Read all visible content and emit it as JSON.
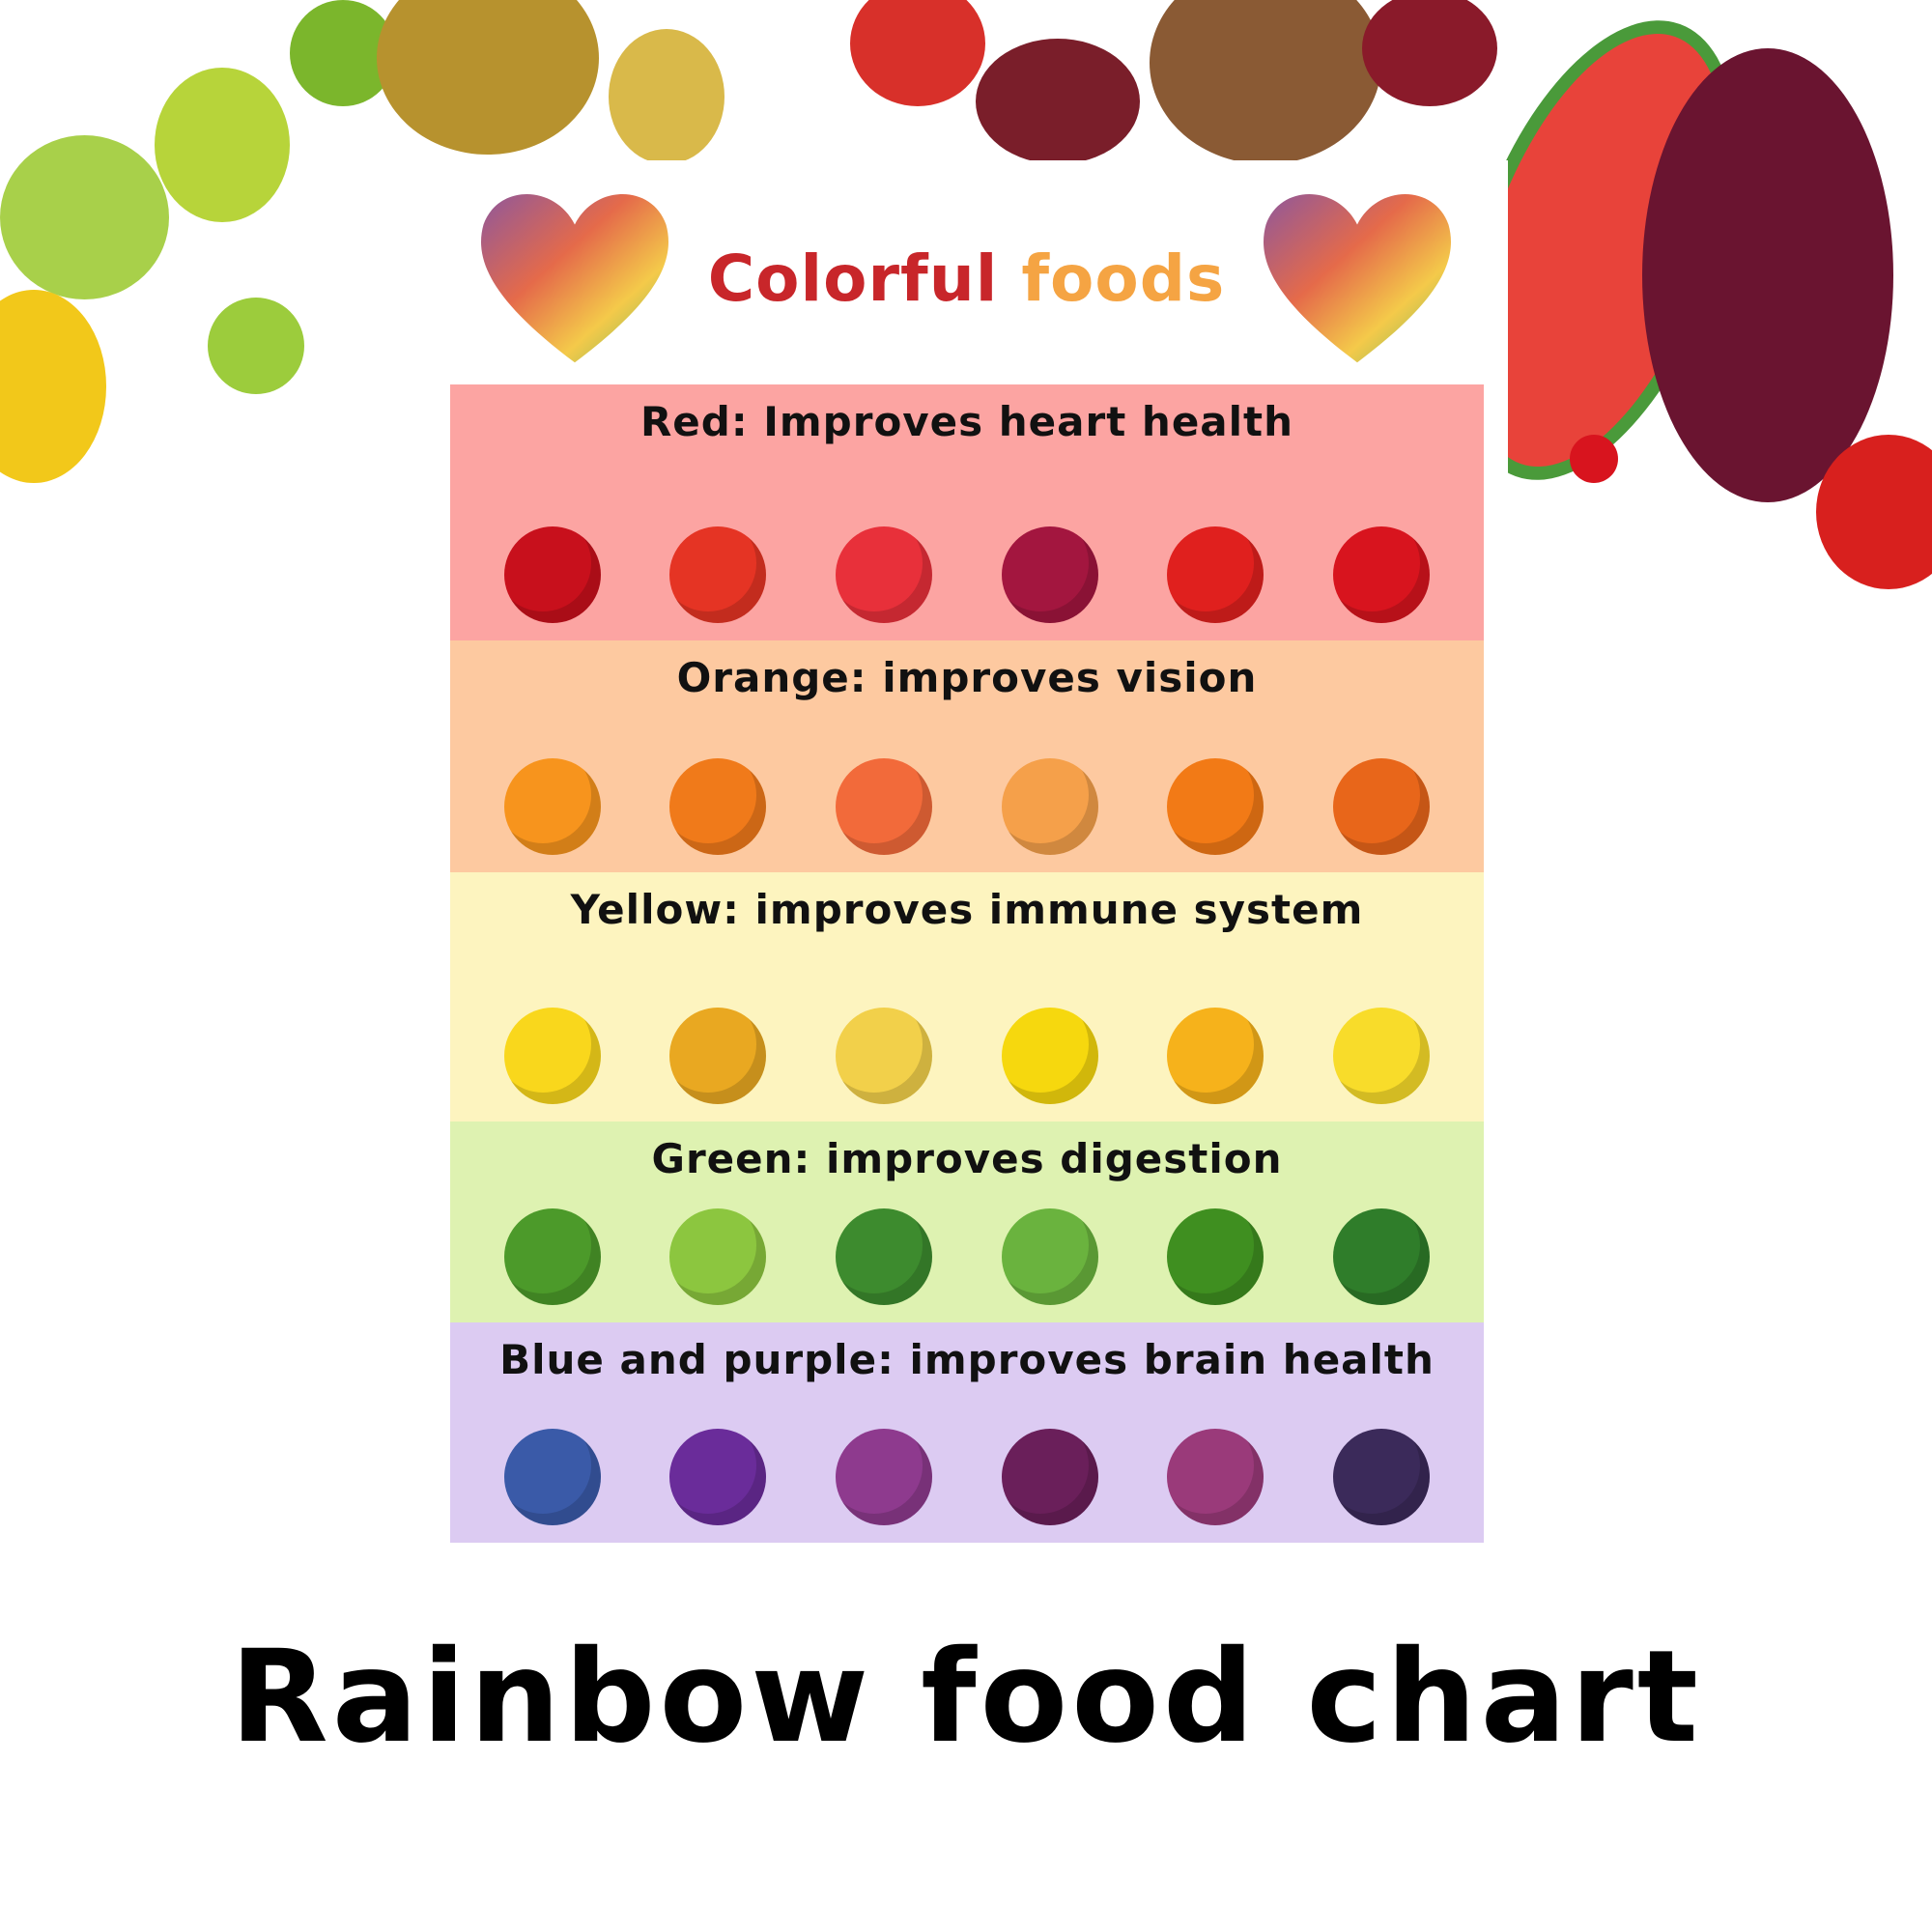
{
  "colors": {
    "red_band": "#fca4a2",
    "orange_band": "#fdc9a0",
    "yellow_band": "#fdf4bf",
    "green_band": "#def2b1",
    "purple_band": "#dccbf2",
    "title_red": "#c8262a",
    "title_orange": "#f5a443"
  },
  "poster": {
    "title_word1": "Colorful",
    "title_word2": "foods",
    "bands": [
      {
        "label": "Red: Improves heart health",
        "color": "#fca4a2",
        "items": [
          {
            "icon": "cherry-icon",
            "color": "#c8101c"
          },
          {
            "icon": "tomato-icon",
            "color": "#e53424"
          },
          {
            "icon": "watermelon-icon",
            "color": "#e8303a"
          },
          {
            "icon": "beet-icon",
            "color": "#a3163f"
          },
          {
            "icon": "apple-icon",
            "color": "#e0201e"
          },
          {
            "icon": "strawberry-icon",
            "color": "#d8141e"
          }
        ]
      },
      {
        "label": "Orange: improves vision",
        "color": "#fdc9a0",
        "items": [
          {
            "icon": "orange-icon",
            "color": "#f7941d"
          },
          {
            "icon": "papaya-icon",
            "color": "#f07a1a"
          },
          {
            "icon": "peach-icon",
            "color": "#f26a3a"
          },
          {
            "icon": "cantaloupe-icon",
            "color": "#f5a04a"
          },
          {
            "icon": "orange-pepper-icon",
            "color": "#f27a16"
          },
          {
            "icon": "carrot-icon",
            "color": "#e8661a"
          }
        ]
      },
      {
        "label": "Yellow: improves immune system",
        "color": "#fdf4bf",
        "items": [
          {
            "icon": "lemon-icon",
            "color": "#f9d71c"
          },
          {
            "icon": "pineapple-icon",
            "color": "#e9a821"
          },
          {
            "icon": "turnip-icon",
            "color": "#f2d04a"
          },
          {
            "icon": "yellow-pepper-icon",
            "color": "#f6d80e"
          },
          {
            "icon": "mango-icon",
            "color": "#f6b21b"
          },
          {
            "icon": "banana-icon",
            "color": "#f8dc2a"
          }
        ]
      },
      {
        "label": "Green: improves digestion",
        "color": "#def2b1",
        "items": [
          {
            "icon": "cucumber-icon",
            "color": "#4c9a2a"
          },
          {
            "icon": "celery-icon",
            "color": "#8cc63f"
          },
          {
            "icon": "kale-icon",
            "color": "#3d8b2e"
          },
          {
            "icon": "peas-icon",
            "color": "#6ab33e"
          },
          {
            "icon": "green-pepper-icon",
            "color": "#3f8f20"
          },
          {
            "icon": "spinach-icon",
            "color": "#2f7d2a"
          }
        ]
      },
      {
        "label": "Blue and purple: improves brain health",
        "color": "#dccbf2",
        "items": [
          {
            "icon": "blueberry-icon",
            "color": "#3a5aa8"
          },
          {
            "icon": "grapes-icon",
            "color": "#6a2c9a"
          },
          {
            "icon": "red-cabbage-icon",
            "color": "#8e3a8e"
          },
          {
            "icon": "plum-icon",
            "color": "#6a1f5a"
          },
          {
            "icon": "purple-sweet-potato-icon",
            "color": "#9a3a7a"
          },
          {
            "icon": "blackberry-icon",
            "color": "#3b2a5a"
          }
        ]
      }
    ]
  },
  "main_title": "Rainbow food chart"
}
